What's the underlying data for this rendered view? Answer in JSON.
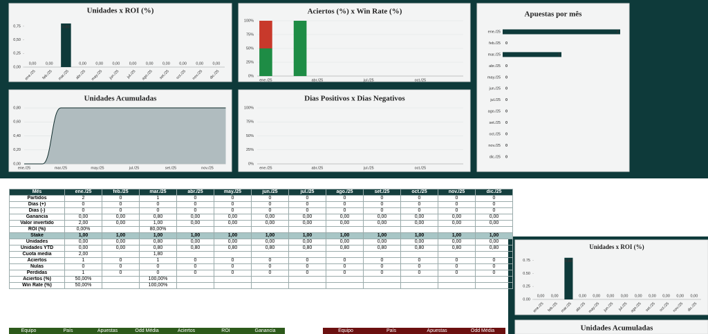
{
  "chart_data": [
    {
      "type": "bar",
      "title": "Unidades x ROI (%)",
      "categories": [
        "ene./25",
        "feb./25",
        "mar./25",
        "abr./25",
        "may./25",
        "jun./25",
        "jul./25",
        "ago./25",
        "set./25",
        "oct./25",
        "nov./25",
        "dic./25"
      ],
      "values": [
        0,
        0,
        0.8,
        0,
        0,
        0,
        0,
        0,
        0,
        0,
        0,
        0
      ],
      "value_labels": [
        "0,00",
        "0,00",
        "0,80",
        "0,00",
        "0,00",
        "0,00",
        "0,00",
        "0,00",
        "0,00",
        "0,00",
        "0,00",
        "0,00"
      ],
      "color": "#0e3a3a",
      "ylim": [
        0,
        0.85
      ],
      "yticks": [
        {
          "value": 0,
          "label": "0,00"
        },
        {
          "value": 0.25,
          "label": "0,25"
        },
        {
          "value": 0.5,
          "label": "0,50"
        },
        {
          "value": 0.75,
          "label": "0,75"
        }
      ],
      "grid": false
    },
    {
      "type": "bar",
      "title": "Aciertos (%) x Win Rate (%)",
      "categories": [
        "ene./25",
        null,
        null,
        "abr./25",
        null,
        null,
        "jul./25",
        null,
        null,
        "oct./25",
        null,
        null
      ],
      "series": [
        {
          "color": "#1e8c45",
          "values": [
            50,
            null,
            100,
            null,
            null,
            null,
            null,
            null,
            null,
            null,
            null,
            null
          ]
        },
        {
          "color": "#c8392b",
          "values": [
            50,
            null,
            0,
            null,
            null,
            null,
            null,
            null,
            null,
            null,
            null,
            null
          ]
        }
      ],
      "ylim": [
        0,
        100
      ],
      "yticks": [
        {
          "value": 0,
          "label": "0%"
        },
        {
          "value": 25,
          "label": "25%"
        },
        {
          "value": 50,
          "label": "50%"
        },
        {
          "value": 75,
          "label": "75%"
        },
        {
          "value": 100,
          "label": "100%"
        }
      ],
      "grid": true
    },
    {
      "type": "hbar",
      "title": "Apuestas por mês",
      "categories": [
        "ene./25",
        "feb./25",
        "mar./25",
        "abr./25",
        "may./25",
        "jun./25",
        "jul./25",
        "ago./25",
        "set./25",
        "oct./25",
        "nov./25",
        "dic./25"
      ],
      "values": [
        2,
        0,
        1,
        0,
        0,
        0,
        0,
        0,
        0,
        0,
        0,
        0
      ],
      "color": "#0e3a3a",
      "xlim": [
        0,
        2
      ]
    },
    {
      "type": "area",
      "title": "Unidades Acumuladas",
      "categories": [
        "ene./25",
        null,
        "mar./25",
        null,
        "may./25",
        null,
        "jul./25",
        null,
        "set./25",
        null,
        "nov./25",
        null
      ],
      "values": [
        0,
        0,
        0.8,
        0.8,
        0.8,
        0.8,
        0.8,
        0.8,
        0.8,
        0.8,
        0.8,
        0.8
      ],
      "color": "#b0bcbf",
      "ylim": [
        0,
        0.85
      ],
      "yticks": [
        {
          "value": 0,
          "label": "0,00"
        },
        {
          "value": 0.2,
          "label": "0,20"
        },
        {
          "value": 0.4,
          "label": "0,40"
        },
        {
          "value": 0.6,
          "label": "0,60"
        },
        {
          "value": 0.8,
          "label": "0,80"
        }
      ],
      "grid": true
    },
    {
      "type": "bar",
      "title": "Dias Positivos x Dias Negativos",
      "categories": [
        "ene./25",
        null,
        null,
        "abr./25",
        null,
        null,
        "jul./25",
        null,
        null,
        "oct./25",
        null,
        null
      ],
      "series": [],
      "ylim": [
        0,
        100
      ],
      "yticks": [
        {
          "value": 0,
          "label": "0%"
        },
        {
          "value": 25,
          "label": "25%"
        },
        {
          "value": 50,
          "label": "50%"
        },
        {
          "value": 75,
          "label": "75%"
        },
        {
          "value": 100,
          "label": "100%"
        }
      ],
      "grid": true
    },
    {
      "type": "bar",
      "title": "Unidades x ROI (%)",
      "categories": [
        "ene./25",
        "feb./25",
        "mar./25",
        "abr./25",
        "may./25",
        "jun./25",
        "jul./25",
        "ago./25",
        "set./25",
        "oct./25",
        "nov./25",
        "dic./25"
      ],
      "values": [
        0,
        0,
        0.8,
        0,
        0,
        0,
        0,
        0,
        0,
        0,
        0,
        0
      ],
      "value_labels": [
        "0,00",
        "0,00",
        "0,80",
        "0,00",
        "0,00",
        "0,00",
        "0,00",
        "0,00",
        "0,00",
        "0,00",
        "0,00",
        "0,00"
      ],
      "color": "#0e3a3a",
      "ylim": [
        0,
        0.85
      ],
      "yticks": [
        {
          "value": 0,
          "label": "0.00"
        },
        {
          "value": 0.25,
          "label": "0.25"
        },
        {
          "value": 0.5,
          "label": "0.50"
        },
        {
          "value": 0.75,
          "label": "0.75"
        }
      ],
      "grid": false
    },
    {
      "type": "area",
      "title": "Unidades Acumuladas"
    }
  ],
  "table": {
    "header": [
      "Mês",
      "ene./25",
      "feb./25",
      "mar./25",
      "abr./25",
      "may./25",
      "jun./25",
      "jul./25",
      "ago./25",
      "set./25",
      "oct./25",
      "nov./25",
      "dic./25"
    ],
    "rows": [
      [
        "Partidos",
        "2",
        "0",
        "1",
        "0",
        "0",
        "0",
        "0",
        "0",
        "0",
        "0",
        "0",
        "0"
      ],
      [
        "Dias (+)",
        "0",
        "0",
        "0",
        "0",
        "0",
        "0",
        "0",
        "0",
        "0",
        "0",
        "0",
        "0"
      ],
      [
        "Dias (-)",
        "0",
        "0",
        "0",
        "0",
        "0",
        "0",
        "0",
        "0",
        "0",
        "0",
        "0",
        "0"
      ],
      [
        "Ganancia",
        "0,00",
        "0,00",
        "0,80",
        "0,00",
        "0,00",
        "0,00",
        "0,00",
        "0,00",
        "0,00",
        "0,00",
        "0,00",
        "0,00"
      ],
      [
        "Valor invertido",
        "2,00",
        "0,00",
        "1,00",
        "0,00",
        "0,00",
        "0,00",
        "0,00",
        "0,00",
        "0,00",
        "0,00",
        "0,00",
        "0,00"
      ],
      [
        "ROI (%)",
        "0,00%",
        null,
        "80,00%",
        null,
        null,
        null,
        null,
        null,
        null,
        null,
        null,
        null
      ],
      [
        "Stake",
        "1,00",
        "1,00",
        "1,00",
        "1,00",
        "1,00",
        "1,00",
        "1,00",
        "1,00",
        "1,00",
        "1,00",
        "1,00",
        "1,00"
      ],
      [
        "Unidades",
        "0,00",
        "0,00",
        "0,80",
        "0,00",
        "0,00",
        "0,00",
        "0,00",
        "0,00",
        "0,00",
        "0,00",
        "0,00",
        "0,00"
      ],
      [
        "Unidades YTD",
        "0,00",
        "0,00",
        "0,80",
        "0,80",
        "0,80",
        "0,80",
        "0,80",
        "0,80",
        "0,80",
        "0,80",
        "0,80",
        "0,80"
      ],
      [
        "Cuota media",
        "2,00",
        null,
        "1,80",
        null,
        null,
        null,
        null,
        null,
        null,
        null,
        null,
        null
      ],
      [
        "Aciertos",
        "1",
        "0",
        "1",
        "0",
        "0",
        "0",
        "0",
        "0",
        "0",
        "0",
        "0",
        "0"
      ],
      [
        "Nulas",
        "0",
        "0",
        "0",
        "0",
        "0",
        "0",
        "0",
        "0",
        "0",
        "0",
        "0",
        "0"
      ],
      [
        "Perdidas",
        "1",
        "0",
        "0",
        "0",
        "0",
        "0",
        "0",
        "0",
        "0",
        "0",
        "0",
        "0"
      ],
      [
        "Aciertos (%)",
        "50,00%",
        null,
        "100,00%",
        null,
        null,
        null,
        null,
        null,
        null,
        null,
        null,
        null
      ],
      [
        "Win Rate (%)",
        "50,00%",
        null,
        "100,00%",
        null,
        null,
        null,
        null,
        null,
        null,
        null,
        null,
        null
      ]
    ]
  },
  "bottom_tables": [
    {
      "header": [
        "Equipo",
        "País",
        "Apuestas",
        "Odd Média",
        "Aciertos",
        "ROI",
        "Ganancia"
      ]
    },
    {
      "header": [
        "Equipo",
        "País",
        "Apuestas",
        "Odd Média"
      ]
    }
  ]
}
